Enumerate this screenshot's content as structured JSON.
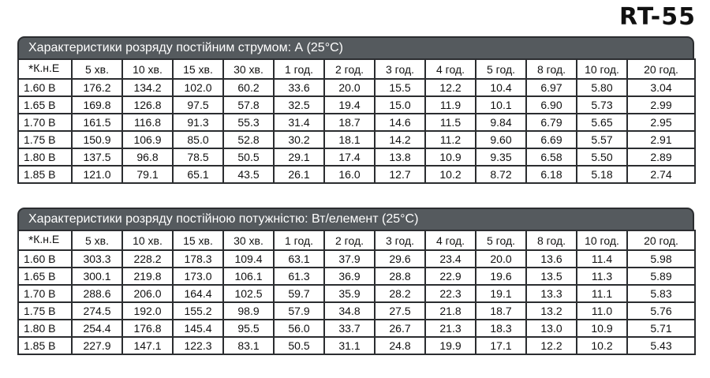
{
  "model": "RT-55",
  "tables": [
    {
      "title": "Характеристики розряду постійним струмом: А (25°С)",
      "header": [
        "К.н.Е",
        "5 хв.",
        "10 хв.",
        "15 хв.",
        "30 хв.",
        "1 год.",
        "2 год.",
        "3 год.",
        "4 год.",
        "5 год.",
        "8 год.",
        "10 год.",
        "20 год."
      ],
      "header_marker": "*",
      "rows": [
        [
          "1.60 В",
          "176.2",
          "134.2",
          "102.0",
          "60.2",
          "33.6",
          "20.0",
          "15.5",
          "12.2",
          "10.4",
          "6.97",
          "5.80",
          "3.04"
        ],
        [
          "1.65 В",
          "169.8",
          "126.8",
          "97.5",
          "57.8",
          "32.5",
          "19.4",
          "15.0",
          "11.9",
          "10.1",
          "6.90",
          "5.73",
          "2.99"
        ],
        [
          "1.70 В",
          "161.5",
          "116.8",
          "91.3",
          "55.3",
          "31.4",
          "18.7",
          "14.6",
          "11.5",
          "9.84",
          "6.79",
          "5.65",
          "2.95"
        ],
        [
          "1.75 В",
          "150.9",
          "106.9",
          "85.0",
          "52.8",
          "30.2",
          "18.1",
          "14.2",
          "11.2",
          "9.60",
          "6.69",
          "5.57",
          "2.91"
        ],
        [
          "1.80 В",
          "137.5",
          "96.8",
          "78.5",
          "50.5",
          "29.1",
          "17.4",
          "13.8",
          "10.9",
          "9.35",
          "6.58",
          "5.50",
          "2.89"
        ],
        [
          "1.85 В",
          "121.0",
          "79.1",
          "65.1",
          "43.5",
          "26.1",
          "16.0",
          "12.7",
          "10.2",
          "8.72",
          "6.18",
          "5.18",
          "2.74"
        ]
      ]
    },
    {
      "title": "Характеристики розряду постійною потужністю: Вт/елемент (25°С)",
      "header": [
        "К.н.Е",
        "5 хв.",
        "10 хв.",
        "15 хв.",
        "30 хв.",
        "1 год.",
        "2 год.",
        "3 год.",
        "4 год.",
        "5 год.",
        "8 год.",
        "10 год.",
        "20 год."
      ],
      "header_marker": "*",
      "rows": [
        [
          "1.60 В",
          "303.3",
          "228.2",
          "178.3",
          "109.4",
          "63.1",
          "37.9",
          "29.6",
          "23.4",
          "20.0",
          "13.6",
          "11.4",
          "5.98"
        ],
        [
          "1.65 В",
          "300.1",
          "219.8",
          "173.0",
          "106.1",
          "61.3",
          "36.9",
          "28.8",
          "22.9",
          "19.6",
          "13.5",
          "11.3",
          "5.89"
        ],
        [
          "1.70 В",
          "288.6",
          "206.0",
          "164.4",
          "102.5",
          "59.7",
          "35.9",
          "28.2",
          "22.3",
          "19.1",
          "13.3",
          "11.1",
          "5.83"
        ],
        [
          "1.75 В",
          "274.5",
          "192.0",
          "155.2",
          "98.9",
          "57.9",
          "34.8",
          "27.5",
          "21.8",
          "18.7",
          "13.2",
          "11.0",
          "5.76"
        ],
        [
          "1.80 В",
          "254.4",
          "176.8",
          "145.4",
          "95.5",
          "56.0",
          "33.7",
          "26.7",
          "21.3",
          "18.3",
          "13.0",
          "10.9",
          "5.71"
        ],
        [
          "1.85 В",
          "227.9",
          "147.1",
          "122.3",
          "83.1",
          "50.5",
          "31.1",
          "24.8",
          "19.9",
          "17.1",
          "12.2",
          "10.2",
          "5.43"
        ]
      ]
    }
  ]
}
